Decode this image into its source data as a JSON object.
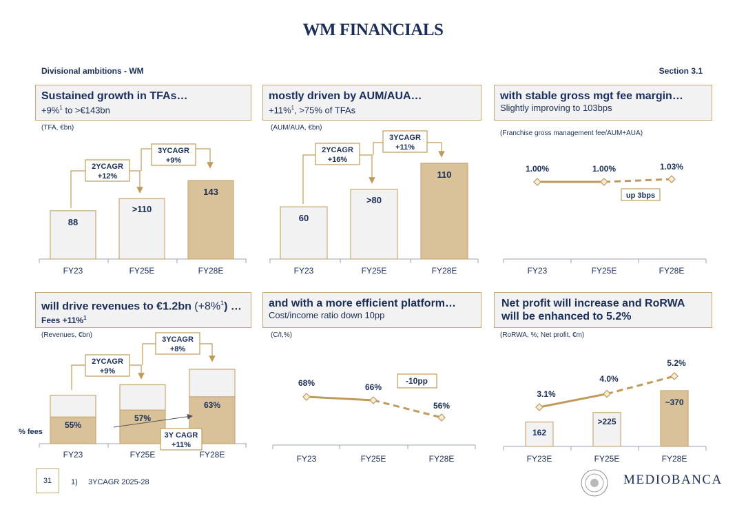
{
  "title": "WM FINANCIALS",
  "header": {
    "left": "Divisional ambitions - WM",
    "right": "Section 3.1"
  },
  "colors": {
    "navy": "#1b2e5a",
    "gold": "#c6a875",
    "light": "#f2f2f2",
    "goldBar": "#d9c29a",
    "goldLine": "#c09a5b"
  },
  "panels": [
    {
      "title": "Sustained growth in TFAs…",
      "sub_pre": "+9%",
      "sub_sup": "1",
      "sub_post": " to >€143bn",
      "unit": "(TFA, €bn)"
    },
    {
      "title": "mostly driven by AUM/AUA…",
      "sub_pre": "+11%",
      "sub_sup": "1",
      "sub_post": ", >75% of TFAs",
      "unit": "(AUM/AUA, €bn)"
    },
    {
      "title": "with stable gross mgt fee margin…",
      "sub": "Slightly improving to 103bps",
      "unit": "(Franchise gross management fee/AUM+AUA)"
    },
    {
      "title_pre": "will drive revenues to €1.2bn",
      "title_mid": " (+8%",
      "title_sup": "1",
      "title_post": ") …",
      "sub_pre": "Fees +11%",
      "sub_sup": "1",
      "unit": "(Revenues, €bn)"
    },
    {
      "title": "and with a more efficient platform…",
      "sub": "Cost/income ratio down 10pp",
      "unit": "(C/I,%)"
    },
    {
      "title": "Net profit will increase and RoRWA",
      "title2": "will be enhanced to 5.2%",
      "unit": "(RoRWA, %; Net profit, €m)"
    }
  ],
  "chart_data": [
    {
      "type": "bar",
      "categories": [
        "FY23",
        "FY25E",
        "FY28E"
      ],
      "labels": [
        ">110",
        "143"
      ],
      "label0": "88",
      "values": [
        88,
        110,
        143
      ],
      "annotations": [
        {
          "label": "2YCAGR",
          "value": "+12%"
        },
        {
          "label": "3YCAGR",
          "value": "+9%"
        }
      ]
    },
    {
      "type": "bar",
      "categories": [
        "FY23",
        "FY25E",
        "FY28E"
      ],
      "label0": "60",
      "labels": [
        ">80",
        "110"
      ],
      "values": [
        60,
        80,
        110
      ],
      "annotations": [
        {
          "label": "2YCAGR",
          "value": "+16%"
        },
        {
          "label": "3YCAGR",
          "value": "+11%"
        }
      ]
    },
    {
      "type": "line",
      "categories": [
        "FY23",
        "FY25E",
        "FY28E"
      ],
      "values": [
        1.0,
        1.0,
        1.03
      ],
      "labels": [
        "1.00%",
        "1.00%",
        "1.03%"
      ],
      "annotation": "up 3bps"
    },
    {
      "type": "bar",
      "categories": [
        "FY23",
        "FY25E",
        "FY28E"
      ],
      "total": [
        0.78,
        0.95,
        1.2
      ],
      "fee_share": [
        55,
        57,
        63
      ],
      "labels": [
        "55%",
        "57%",
        "63%"
      ],
      "side_label": "% fees",
      "annotations": [
        {
          "label": "2YCAGR",
          "value": "+9%"
        },
        {
          "label": "3YCAGR",
          "value": "+8%"
        },
        {
          "label": "3Y CAGR",
          "value": "+11%"
        }
      ]
    },
    {
      "type": "line",
      "categories": [
        "FY23",
        "FY25E",
        "FY28E"
      ],
      "values": [
        68,
        66,
        56
      ],
      "labels": [
        "68%",
        "66%",
        "56%"
      ],
      "annotation": "-10pp"
    },
    {
      "type": "bar",
      "categories": [
        "FY23E",
        "FY25E",
        "FY28E"
      ],
      "bar_values": [
        162,
        225,
        370
      ],
      "bar_labels": [
        "162",
        ">225",
        "~370"
      ],
      "line_values": [
        3.1,
        4.0,
        5.2
      ],
      "line_labels": [
        "3.1%",
        "4.0%",
        "5.2%"
      ]
    }
  ],
  "footer": {
    "page": "31",
    "note_num": "1)",
    "note": "3YCAGR 2025-28",
    "brand": "MEDIOBANCA"
  }
}
